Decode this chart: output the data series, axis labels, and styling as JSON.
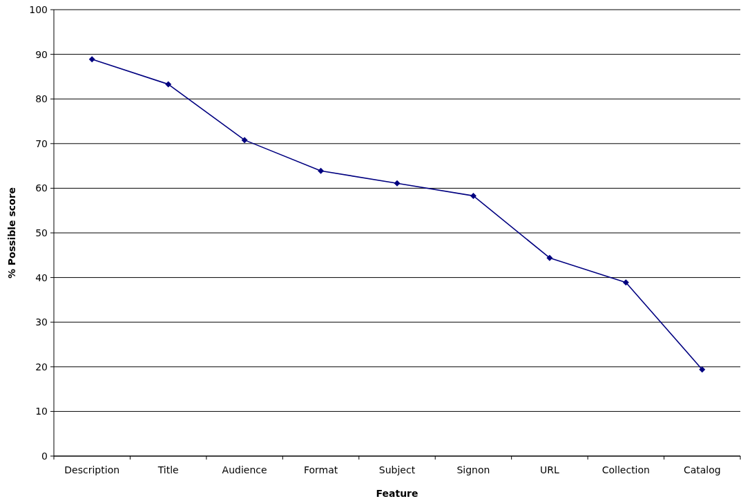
{
  "chart_data": {
    "type": "line",
    "xlabel": "Feature",
    "ylabel": "% Possible score",
    "categories": [
      "Description",
      "Title",
      "Audience",
      "Format",
      "Subject",
      "Signon",
      "URL",
      "Collection",
      "Catalog"
    ],
    "series": [
      {
        "color": "#000080",
        "values": [
          88.9,
          83.3,
          70.8,
          63.9,
          61.1,
          58.3,
          44.4,
          38.9,
          19.4
        ]
      }
    ],
    "ylim": [
      0,
      100
    ],
    "yticks": [
      0,
      10,
      20,
      30,
      40,
      50,
      60,
      70,
      80,
      90,
      100
    ],
    "grid": "y",
    "marker": "diamond",
    "line_style": "solid"
  }
}
